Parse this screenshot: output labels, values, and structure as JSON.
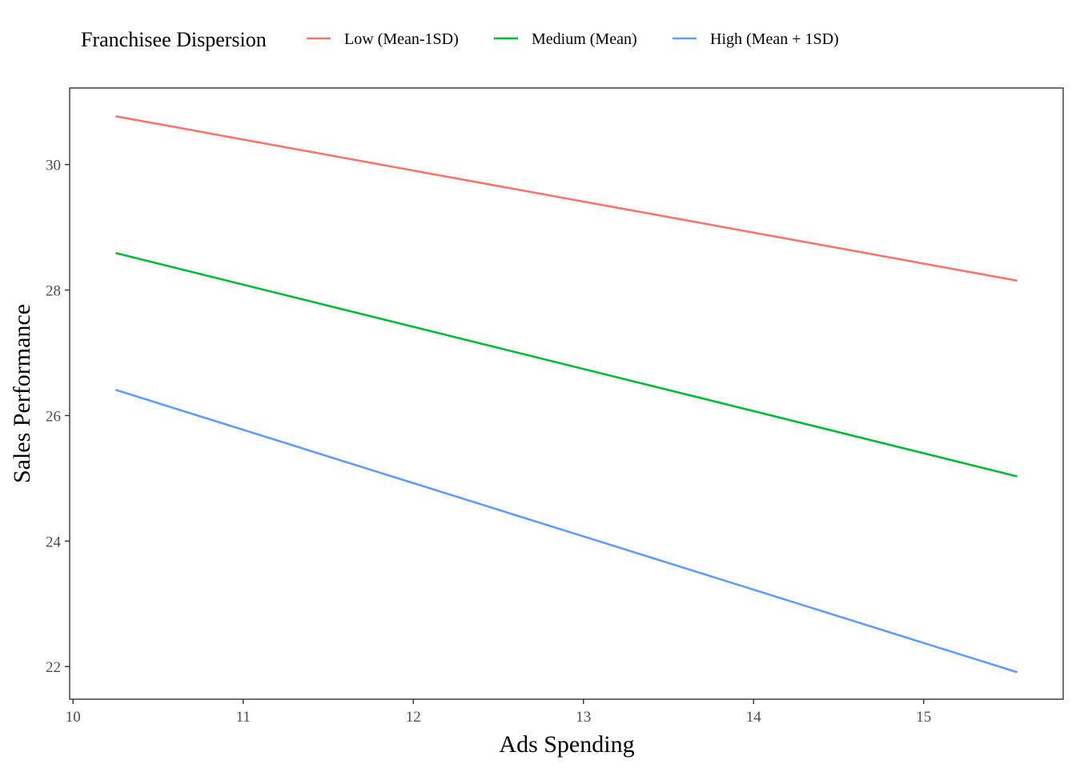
{
  "chart_data": {
    "type": "line",
    "xlabel": "Ads Spending",
    "ylabel": "Sales Performance",
    "xlim": [
      9.98,
      15.82
    ],
    "ylim": [
      21.48,
      31.22
    ],
    "xticks": [
      "10",
      "11",
      "12",
      "13",
      "14",
      "15"
    ],
    "yticks": [
      "22",
      "24",
      "26",
      "28",
      "30"
    ],
    "grid": false,
    "legend": {
      "title": "Franchisee Dispersion",
      "position": "top"
    },
    "series": [
      {
        "name": "Low (Mean-1SD)",
        "color": "#F8766D",
        "x": [
          10.25,
          15.55
        ],
        "y": [
          30.77,
          28.15
        ]
      },
      {
        "name": "Medium (Mean)",
        "color": "#00BA38",
        "x": [
          10.25,
          15.55
        ],
        "y": [
          28.59,
          25.03
        ]
      },
      {
        "name": "High (Mean + 1SD)",
        "color": "#619CFF",
        "x": [
          10.25,
          15.55
        ],
        "y": [
          26.41,
          21.91
        ]
      }
    ]
  }
}
